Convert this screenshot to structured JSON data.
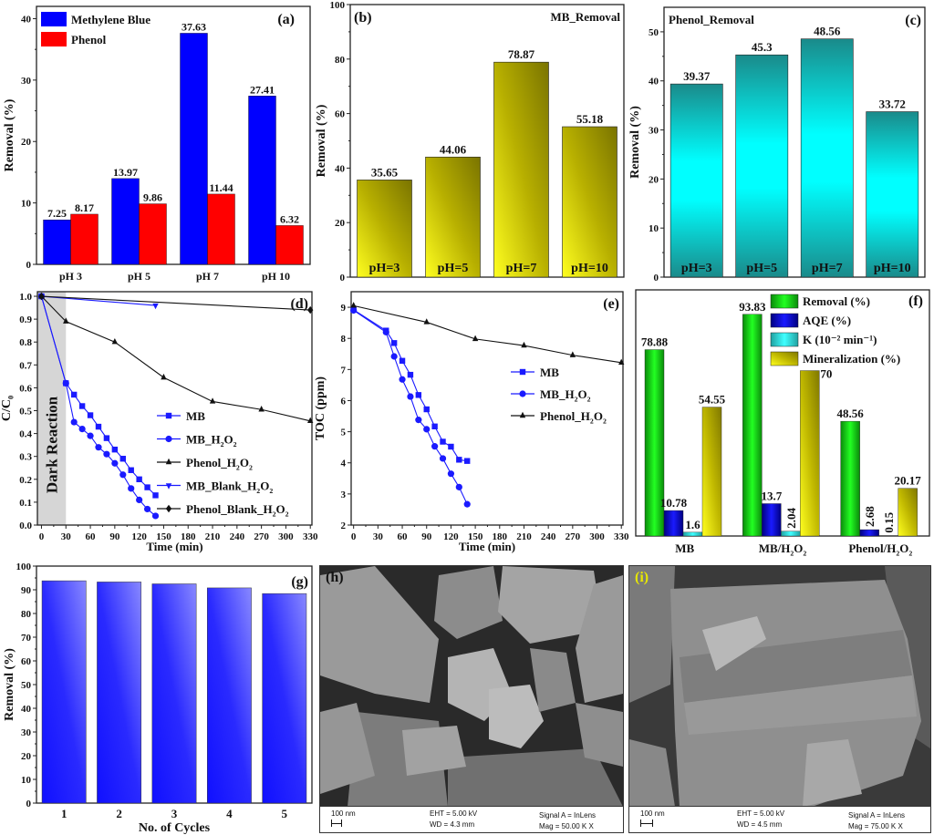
{
  "chart_data": [
    {
      "id": "a",
      "panel_label": "(a)",
      "type": "bar",
      "categories": [
        "pH 3",
        "pH 5",
        "pH 7",
        "pH 10"
      ],
      "series": [
        {
          "name": "Methylene Blue",
          "color": "#0000ff",
          "values": [
            7.25,
            13.97,
            37.63,
            27.41
          ],
          "labels": [
            "7.25",
            "13.97",
            "37.63",
            "27.41"
          ]
        },
        {
          "name": "Phenol",
          "color": "#ff0000",
          "values": [
            8.17,
            9.86,
            11.44,
            6.32
          ],
          "labels": [
            "8.17",
            "9.86",
            "11.44",
            "6.32"
          ]
        }
      ],
      "ylabel": "Removal (%)",
      "xlabel": "",
      "ylim": [
        0,
        42
      ],
      "yticks": [
        0,
        10,
        20,
        30,
        40
      ],
      "legend": "top-left"
    },
    {
      "id": "b",
      "panel_label": "(b)",
      "type": "bar",
      "title": "MB_Removal",
      "title_color": "#1a1aff",
      "categories": [
        "pH=3",
        "pH=5",
        "pH=7",
        "pH=10"
      ],
      "values": [
        35.65,
        44.06,
        78.87,
        55.18
      ],
      "labels": [
        "35.65",
        "44.06",
        "78.87",
        "55.18"
      ],
      "color": "#c8c000",
      "ylabel": "Removal (%)",
      "ylim": [
        0,
        100
      ],
      "yticks": [
        0,
        20,
        40,
        60,
        80,
        100
      ]
    },
    {
      "id": "c",
      "panel_label": "(c)",
      "type": "bar",
      "title": "Phenol_Removal",
      "categories": [
        "pH=3",
        "pH=5",
        "pH=7",
        "pH=10"
      ],
      "values": [
        39.37,
        45.3,
        48.56,
        33.72
      ],
      "labels": [
        "39.37",
        "45.3",
        "48.56",
        "33.72"
      ],
      "color": "#00c8c8",
      "ylabel": "Removal (%)",
      "ylim": [
        0,
        55
      ],
      "yticks": [
        0,
        10,
        20,
        30,
        40,
        50
      ]
    },
    {
      "id": "d",
      "panel_label": "(d)",
      "type": "line",
      "xlabel": "Time (min)",
      "ylabel": "C/C₀",
      "xlim": [
        -5,
        332
      ],
      "ylim": [
        0,
        1.02
      ],
      "xticks": [
        0,
        30,
        60,
        90,
        120,
        150,
        180,
        210,
        240,
        270,
        300,
        330
      ],
      "yticks": [
        0.0,
        0.1,
        0.2,
        0.3,
        0.4,
        0.5,
        0.6,
        0.7,
        0.8,
        0.9,
        1.0
      ],
      "ytick_labels": [
        "0.0",
        "0.1",
        "0.2",
        "0.3",
        "0.4",
        "0.5",
        "0.6",
        "0.7",
        "0.8",
        "0.9",
        "1.0"
      ],
      "shaded_region": {
        "x": [
          0,
          30
        ],
        "label": "Dark Reaction"
      },
      "series": [
        {
          "name": "MB",
          "legend": "MB",
          "color": "#1a1aff",
          "marker": "square",
          "x": [
            0,
            30,
            40,
            50,
            60,
            70,
            80,
            90,
            100,
            110,
            120,
            130,
            140
          ],
          "y": [
            1.0,
            0.62,
            0.57,
            0.52,
            0.48,
            0.43,
            0.38,
            0.33,
            0.29,
            0.24,
            0.2,
            0.165,
            0.13
          ]
        },
        {
          "name": "MB_H2O2",
          "legend": "MB_H₂O₂",
          "color": "#1a1aff",
          "marker": "circle",
          "x": [
            0,
            30,
            40,
            50,
            60,
            70,
            80,
            90,
            100,
            110,
            120,
            130,
            140
          ],
          "y": [
            1.0,
            0.62,
            0.45,
            0.42,
            0.39,
            0.34,
            0.31,
            0.27,
            0.22,
            0.16,
            0.11,
            0.07,
            0.04
          ]
        },
        {
          "name": "Phenol_H2O2",
          "legend": "Phenol_H₂O₂",
          "color": "#111111",
          "marker": "triangle-up",
          "x": [
            0,
            30,
            90,
            150,
            210,
            270,
            330
          ],
          "y": [
            1.0,
            0.89,
            0.8,
            0.645,
            0.54,
            0.505,
            0.455
          ]
        },
        {
          "name": "MB_Blank_H2O2",
          "legend": "MB_Blank_H₂O₂",
          "color": "#1a1aff",
          "marker": "triangle-down",
          "x": [
            0,
            140
          ],
          "y": [
            1.0,
            0.96
          ]
        },
        {
          "name": "Phenol_Blank_H2O2",
          "legend": "Phenol_Blank_H₂O₂",
          "color": "#111111",
          "marker": "diamond",
          "x": [
            0,
            330
          ],
          "y": [
            1.0,
            0.94
          ]
        }
      ],
      "legend": "center-right"
    },
    {
      "id": "e",
      "panel_label": "(e)",
      "type": "line",
      "xlabel": "Time (min)",
      "ylabel": "TOC (ppm)",
      "xlim": [
        -3,
        332
      ],
      "ylim": [
        2,
        9.5
      ],
      "xticks": [
        0,
        30,
        60,
        90,
        120,
        150,
        180,
        210,
        240,
        270,
        300,
        330
      ],
      "yticks": [
        2,
        3,
        4,
        5,
        6,
        7,
        8,
        9
      ],
      "ytick_labels": [
        "2",
        "3",
        "4",
        "5",
        "6",
        "7",
        "8",
        "9"
      ],
      "series": [
        {
          "name": "MB",
          "legend": "MB",
          "color": "#1a1aff",
          "marker": "square",
          "x": [
            0,
            40,
            50,
            60,
            70,
            80,
            90,
            100,
            110,
            120,
            130,
            140
          ],
          "y": [
            8.92,
            8.25,
            7.85,
            7.28,
            6.83,
            6.18,
            5.72,
            5.17,
            4.68,
            4.52,
            4.1,
            4.06
          ]
        },
        {
          "name": "MB_H2O2",
          "legend": "MB_H₂O₂",
          "color": "#1a1aff",
          "marker": "circle",
          "x": [
            0,
            40,
            50,
            60,
            70,
            80,
            90,
            100,
            110,
            120,
            130,
            140
          ],
          "y": [
            8.9,
            8.2,
            7.42,
            6.68,
            6.13,
            5.38,
            5.08,
            4.53,
            4.14,
            3.65,
            3.22,
            2.67
          ]
        },
        {
          "name": "Phenol_H2O2",
          "legend": "Phenol_H₂O₂",
          "color": "#111111",
          "marker": "triangle-up",
          "x": [
            0,
            90,
            150,
            210,
            270,
            330
          ],
          "y": [
            9.05,
            8.52,
            7.98,
            7.77,
            7.46,
            7.22
          ]
        }
      ],
      "legend": "center-right"
    },
    {
      "id": "f",
      "panel_label": "(f)",
      "type": "bar",
      "categories": [
        "MB",
        "MB/H₂O₂",
        "Phenol/H₂O₂"
      ],
      "series": [
        {
          "name": "Removal (%)",
          "color": "#22cc22",
          "values": [
            78.88,
            93.83,
            48.56
          ],
          "labels": [
            "78.88",
            "93.83",
            "48.56"
          ]
        },
        {
          "name": "AQE (%)",
          "color": "#1010c0",
          "values": [
            10.78,
            13.7,
            2.68
          ],
          "labels": [
            "10.78",
            "13.7",
            "2.68"
          ]
        },
        {
          "name": "K (10⁻² min⁻¹)",
          "color": "#30e0e0",
          "values": [
            1.6,
            2.04,
            0.15
          ],
          "labels": [
            "1.6",
            "2.04",
            "0.15"
          ]
        },
        {
          "name": "Mineralization (%)",
          "color": "#d0c800",
          "values": [
            54.55,
            70,
            20.17
          ],
          "labels": [
            "54.55",
            "70",
            "20.17"
          ]
        }
      ],
      "ylim": [
        0,
        100
      ],
      "legend": "top-right"
    },
    {
      "id": "g",
      "panel_label": "(g)",
      "type": "bar",
      "categories": [
        "1",
        "2",
        "3",
        "4",
        "5"
      ],
      "values": [
        93.8,
        93.3,
        92.5,
        90.8,
        88.4
      ],
      "color": "#2233ff",
      "xlabel": "No. of Cycles",
      "ylabel": "Removal (%)",
      "ylim": [
        0,
        100
      ],
      "yticks": [
        0,
        10,
        20,
        30,
        40,
        50,
        60,
        70,
        80,
        90,
        100
      ]
    }
  ],
  "sem_images": [
    {
      "id": "h",
      "panel_label": "(h)",
      "label_color": "#111111",
      "scale_bar": "100 nm",
      "eht": "EHT =  5.00 kV",
      "wd": "WD =  4.3 mm",
      "signal": "Signal A = InLens",
      "mag": "Mag =   50.00 K X"
    },
    {
      "id": "i",
      "panel_label": "(i)",
      "label_color": "#e8e800",
      "scale_bar": "100 nm",
      "eht": "EHT =  5.00 kV",
      "wd": "WD =  4.5 mm",
      "signal": "Signal A = InLens",
      "mag": "Mag =   75.00 K X"
    }
  ]
}
